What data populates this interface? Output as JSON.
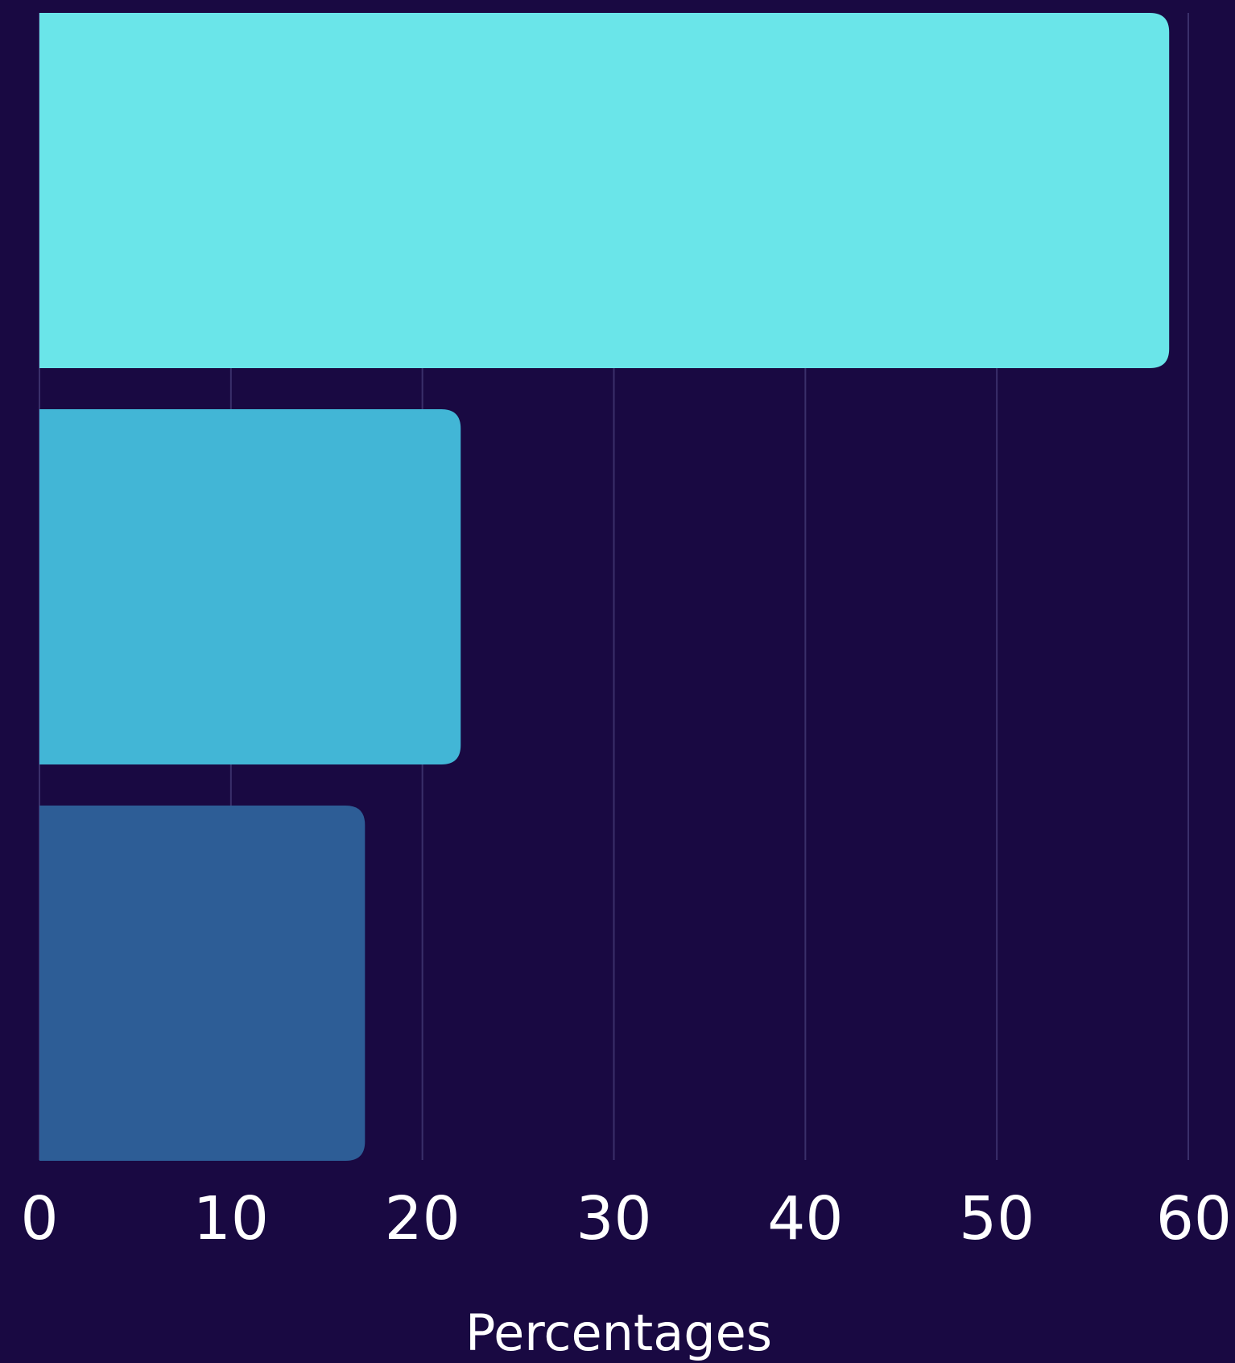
{
  "chart_data": {
    "type": "bar",
    "orientation": "horizontal",
    "categories": [
      "",
      "",
      ""
    ],
    "values": [
      59,
      22,
      17
    ],
    "colors": [
      "#6ae5e9",
      "#42b6d6",
      "#2d5d96"
    ],
    "xlabel": "Percentages",
    "ylabel": "",
    "xlim": [
      0,
      60
    ],
    "xticks": [
      "0",
      "10",
      "20",
      "30",
      "40",
      "50",
      "60"
    ],
    "grid": true,
    "background": "#190942"
  }
}
